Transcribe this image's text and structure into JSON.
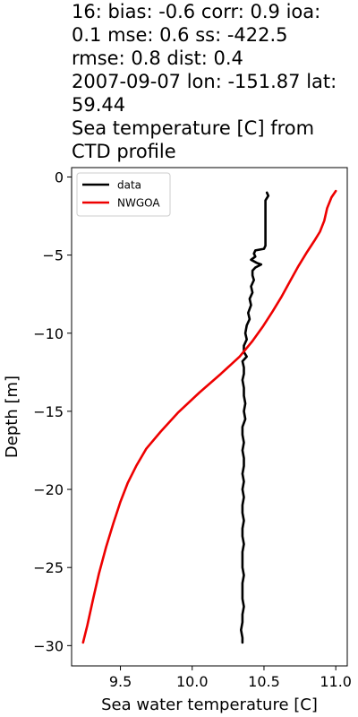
{
  "title_lines": [
    "16: bias: -0.6  corr: 0.9  ioa:",
    "0.1  mse: 0.6  ss: -422.5",
    "rmse: 0.8  dist: 0.4",
    "2007-09-07 lon: -151.87 lat:",
    "59.44",
    "Sea temperature [C] from",
    "CTD profile"
  ],
  "chart_data": {
    "type": "line",
    "title": "16: bias: -0.6  corr: 0.9  ioa: 0.1  mse: 0.6  ss: -422.5 rmse: 0.8  dist: 0.4 2007-09-07 lon: -151.87 lat: 59.44 Sea temperature [C] from CTD profile",
    "xlabel": "Sea water temperature [C]",
    "ylabel": "Depth [m]",
    "xlim": [
      9.16,
      11.08
    ],
    "ylim": [
      -31.3,
      0.6
    ],
    "x_ticks": [
      9.5,
      10.0,
      10.5,
      11.0
    ],
    "x_tick_labels": [
      "9.5",
      "10.0",
      "10.5",
      "11.0"
    ],
    "y_ticks": [
      0,
      -5,
      -10,
      -15,
      -20,
      -25,
      -30
    ],
    "y_tick_labels": [
      "0",
      "−5",
      "−10",
      "−15",
      "−20",
      "−25",
      "−30"
    ],
    "grid": false,
    "legend_position": "top-left",
    "series": [
      {
        "name": "data",
        "color": "#000000",
        "points": [
          [
            10.52,
            -1.0
          ],
          [
            10.53,
            -1.2
          ],
          [
            10.51,
            -1.5
          ],
          [
            10.51,
            -2.0
          ],
          [
            10.51,
            -2.5
          ],
          [
            10.51,
            -3.0
          ],
          [
            10.51,
            -3.5
          ],
          [
            10.51,
            -4.0
          ],
          [
            10.51,
            -4.4
          ],
          [
            10.5,
            -4.6
          ],
          [
            10.44,
            -4.7
          ],
          [
            10.43,
            -4.9
          ],
          [
            10.44,
            -5.1
          ],
          [
            10.41,
            -5.3
          ],
          [
            10.45,
            -5.5
          ],
          [
            10.48,
            -5.6
          ],
          [
            10.44,
            -5.8
          ],
          [
            10.42,
            -6.0
          ],
          [
            10.42,
            -6.3
          ],
          [
            10.43,
            -6.6
          ],
          [
            10.41,
            -7.0
          ],
          [
            10.42,
            -7.4
          ],
          [
            10.4,
            -7.8
          ],
          [
            10.41,
            -8.2
          ],
          [
            10.39,
            -8.7
          ],
          [
            10.4,
            -9.1
          ],
          [
            10.38,
            -9.5
          ],
          [
            10.37,
            -10.0
          ],
          [
            10.38,
            -10.4
          ],
          [
            10.36,
            -10.8
          ],
          [
            10.36,
            -11.2
          ],
          [
            10.38,
            -11.5
          ],
          [
            10.35,
            -11.8
          ],
          [
            10.36,
            -12.2
          ],
          [
            10.36,
            -12.6
          ],
          [
            10.35,
            -13.0
          ],
          [
            10.36,
            -13.5
          ],
          [
            10.36,
            -14.0
          ],
          [
            10.37,
            -14.5
          ],
          [
            10.36,
            -15.0
          ],
          [
            10.37,
            -15.5
          ],
          [
            10.35,
            -16.0
          ],
          [
            10.35,
            -16.5
          ],
          [
            10.36,
            -17.0
          ],
          [
            10.35,
            -17.5
          ],
          [
            10.36,
            -18.0
          ],
          [
            10.36,
            -18.5
          ],
          [
            10.35,
            -19.0
          ],
          [
            10.36,
            -19.5
          ],
          [
            10.35,
            -20.0
          ],
          [
            10.36,
            -20.5
          ],
          [
            10.35,
            -21.0
          ],
          [
            10.35,
            -21.5
          ],
          [
            10.36,
            -22.0
          ],
          [
            10.35,
            -22.5
          ],
          [
            10.35,
            -23.0
          ],
          [
            10.36,
            -23.5
          ],
          [
            10.35,
            -24.0
          ],
          [
            10.35,
            -24.5
          ],
          [
            10.35,
            -25.0
          ],
          [
            10.36,
            -25.5
          ],
          [
            10.35,
            -26.0
          ],
          [
            10.35,
            -26.5
          ],
          [
            10.35,
            -27.0
          ],
          [
            10.36,
            -27.5
          ],
          [
            10.35,
            -28.0
          ],
          [
            10.35,
            -28.5
          ],
          [
            10.34,
            -29.0
          ],
          [
            10.35,
            -29.5
          ],
          [
            10.35,
            -29.8
          ]
        ]
      },
      {
        "name": "NWGOA",
        "color": "#ee0000",
        "points": [
          [
            11.0,
            -0.9
          ],
          [
            10.97,
            -1.3
          ],
          [
            10.94,
            -2.0
          ],
          [
            10.92,
            -2.8
          ],
          [
            10.89,
            -3.5
          ],
          [
            10.85,
            -4.1
          ],
          [
            10.8,
            -4.8
          ],
          [
            10.74,
            -5.7
          ],
          [
            10.68,
            -6.7
          ],
          [
            10.62,
            -7.7
          ],
          [
            10.56,
            -8.6
          ],
          [
            10.49,
            -9.6
          ],
          [
            10.42,
            -10.5
          ],
          [
            10.33,
            -11.5
          ],
          [
            10.2,
            -12.6
          ],
          [
            10.05,
            -13.8
          ],
          [
            9.9,
            -15.1
          ],
          [
            9.78,
            -16.3
          ],
          [
            9.68,
            -17.4
          ],
          [
            9.61,
            -18.5
          ],
          [
            9.55,
            -19.6
          ],
          [
            9.5,
            -20.8
          ],
          [
            9.45,
            -22.2
          ],
          [
            9.4,
            -23.7
          ],
          [
            9.35,
            -25.4
          ],
          [
            9.31,
            -27.0
          ],
          [
            9.27,
            -28.7
          ],
          [
            9.24,
            -29.8
          ]
        ]
      }
    ]
  }
}
